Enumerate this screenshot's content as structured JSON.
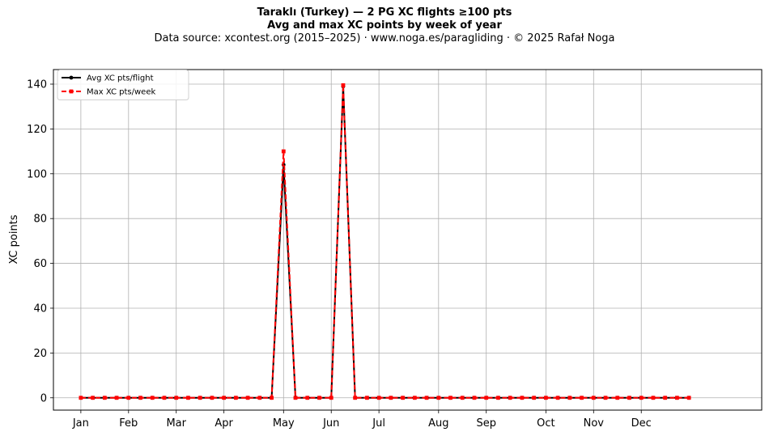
{
  "header": {
    "title": "Taraklı (Turkey)  —  2 PG XC flights ≥100 pts",
    "subtitle": "Avg and max XC points by week of year",
    "source": "Data source: xcontest.org (2015–2025)  ·  www.noga.es/paragliding  ·  © 2025 Rafał Noga"
  },
  "chart_data": {
    "type": "line",
    "title": "Taraklı (Turkey)  —  2 PG XC flights ≥100 pts",
    "subtitle": "Avg and max XC points by week of year",
    "xlabel": "",
    "ylabel": "XC points",
    "x": [
      1,
      2,
      3,
      4,
      5,
      6,
      7,
      8,
      9,
      10,
      11,
      12,
      13,
      14,
      15,
      16,
      17,
      18,
      19,
      20,
      21,
      22,
      23,
      24,
      25,
      26,
      27,
      28,
      29,
      30,
      31,
      32,
      33,
      34,
      35,
      36,
      37,
      38,
      39,
      40,
      41,
      42,
      43,
      44,
      45,
      46,
      47,
      48,
      49,
      50,
      51,
      52
    ],
    "xlim": [
      -1.3,
      58.1
    ],
    "xticks": [
      {
        "pos": 1,
        "label": "Jan"
      },
      {
        "pos": 5,
        "label": "Feb"
      },
      {
        "pos": 9,
        "label": "Mar"
      },
      {
        "pos": 13,
        "label": "Apr"
      },
      {
        "pos": 18,
        "label": "May"
      },
      {
        "pos": 22,
        "label": "Jun"
      },
      {
        "pos": 26,
        "label": "Jul"
      },
      {
        "pos": 31,
        "label": "Aug"
      },
      {
        "pos": 35,
        "label": "Sep"
      },
      {
        "pos": 40,
        "label": "Oct"
      },
      {
        "pos": 44,
        "label": "Nov"
      },
      {
        "pos": 48,
        "label": "Dec"
      }
    ],
    "ylim": [
      -5.5,
      146.5
    ],
    "yticks": [
      0,
      20,
      40,
      60,
      80,
      100,
      120,
      140
    ],
    "grid": true,
    "legend_position": "top-left",
    "series": [
      {
        "name": "Avg XC pts/flight",
        "color": "#000000",
        "style": "solid",
        "marker": "circle",
        "values": [
          0,
          0,
          0,
          0,
          0,
          0,
          0,
          0,
          0,
          0,
          0,
          0,
          0,
          0,
          0,
          0,
          0,
          104,
          0,
          0,
          0,
          0,
          139,
          0,
          0,
          0,
          0,
          0,
          0,
          0,
          0,
          0,
          0,
          0,
          0,
          0,
          0,
          0,
          0,
          0,
          0,
          0,
          0,
          0,
          0,
          0,
          0,
          0,
          0,
          0,
          0,
          0
        ]
      },
      {
        "name": "Max XC pts/week",
        "color": "#ff0000",
        "style": "dashed",
        "marker": "square",
        "values": [
          0,
          0,
          0,
          0,
          0,
          0,
          0,
          0,
          0,
          0,
          0,
          0,
          0,
          0,
          0,
          0,
          0,
          110,
          0,
          0,
          0,
          0,
          139.5,
          0,
          0,
          0,
          0,
          0,
          0,
          0,
          0,
          0,
          0,
          0,
          0,
          0,
          0,
          0,
          0,
          0,
          0,
          0,
          0,
          0,
          0,
          0,
          0,
          0,
          0,
          0,
          0,
          0
        ]
      }
    ]
  }
}
